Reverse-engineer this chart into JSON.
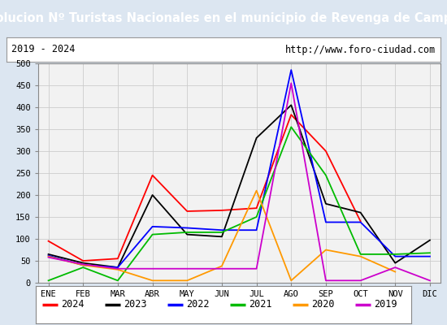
{
  "title": "Evolucion Nº Turistas Nacionales en el municipio de Revenga de Campos",
  "subtitle_left": "2019 - 2024",
  "subtitle_right": "http://www.foro-ciudad.com",
  "months": [
    "ENE",
    "FEB",
    "MAR",
    "ABR",
    "MAY",
    "JUN",
    "JUL",
    "AGO",
    "SEP",
    "OCT",
    "NOV",
    "DIC"
  ],
  "ylim": [
    0,
    500
  ],
  "yticks": [
    0,
    50,
    100,
    150,
    200,
    250,
    300,
    350,
    400,
    450,
    500
  ],
  "series": {
    "2024": {
      "color": "#ff0000",
      "data": [
        95,
        50,
        55,
        245,
        163,
        165,
        170,
        383,
        300,
        140,
        null,
        null
      ]
    },
    "2023": {
      "color": "#000000",
      "data": [
        65,
        45,
        35,
        200,
        110,
        105,
        330,
        405,
        180,
        160,
        45,
        97
      ]
    },
    "2022": {
      "color": "#0000ff",
      "data": [
        62,
        40,
        35,
        128,
        125,
        120,
        120,
        485,
        138,
        138,
        60,
        60
      ]
    },
    "2021": {
      "color": "#00bb00",
      "data": [
        5,
        35,
        5,
        110,
        115,
        115,
        150,
        355,
        245,
        65,
        65,
        68
      ]
    },
    "2020": {
      "color": "#ff9900",
      "data": [
        60,
        40,
        30,
        5,
        5,
        38,
        210,
        5,
        75,
        60,
        25,
        null
      ]
    },
    "2019": {
      "color": "#cc00cc",
      "data": [
        58,
        42,
        32,
        32,
        32,
        32,
        32,
        455,
        5,
        5,
        35,
        5
      ]
    }
  },
  "title_bg_color": "#5b9bd5",
  "title_font_color": "#ffffff",
  "plot_bg_color": "#f2f2f2",
  "outer_bg_color": "#dce6f1",
  "grid_color": "#cccccc",
  "subtitle_box_bg": "#ffffff",
  "legend_box_bg": "#ffffff",
  "years_order": [
    "2024",
    "2023",
    "2022",
    "2021",
    "2020",
    "2019"
  ]
}
